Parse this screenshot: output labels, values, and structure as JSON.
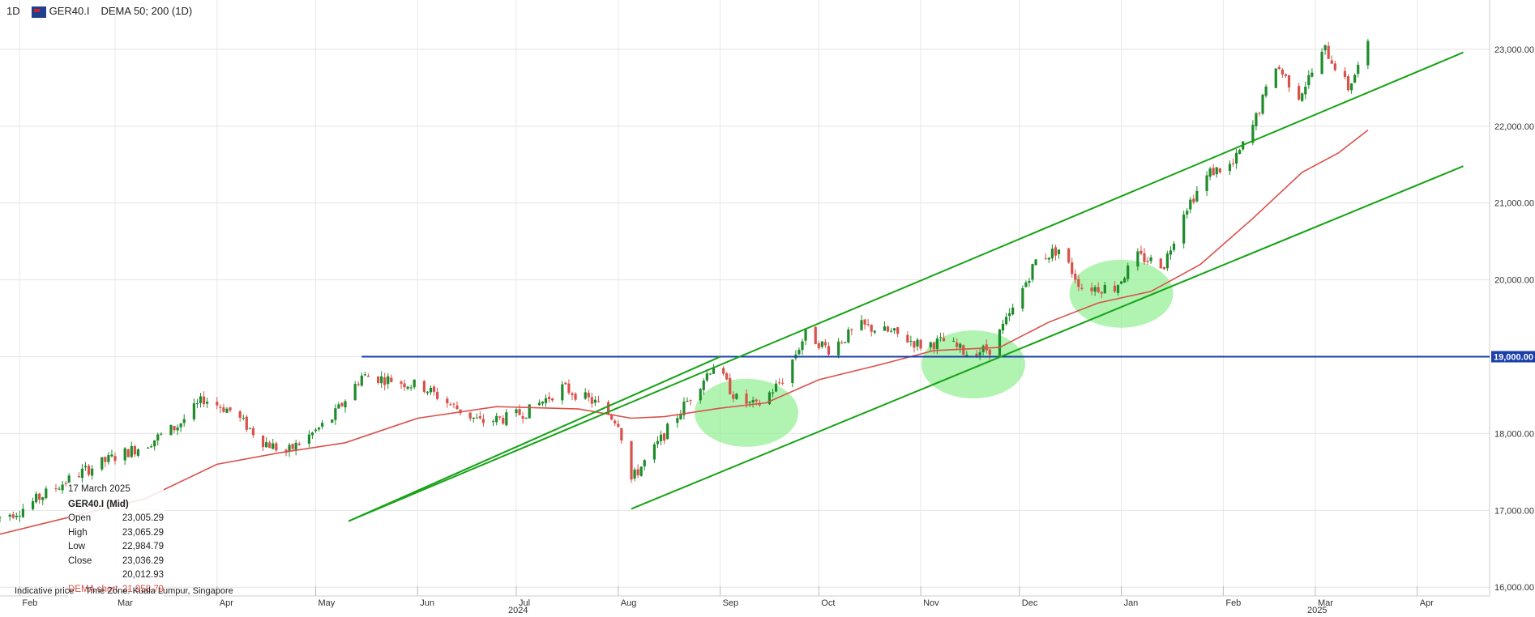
{
  "header": {
    "timeframe": "1D",
    "symbol": "GER40.I",
    "indicator": "DEMA 50; 200 (1D)"
  },
  "info": {
    "date": "17 March 2025",
    "symbol": "GER40.I (Mid)",
    "open_label": "Open",
    "open": "23,005.29",
    "high_label": "High",
    "high": "23,065.29",
    "low_label": "Low",
    "low": "22,984.79",
    "close_label": "Close",
    "close": "23,036.29",
    "dema_long": "20,012.93",
    "dema_short_label": "DEMA short",
    "dema_short": "21,958.79"
  },
  "footer": {
    "indicative": "Indicative price",
    "timezone": "Time Zone: Kuala Lumpur, Singapore"
  },
  "colors": {
    "up": "#1e8c2b",
    "down": "#d9514a",
    "channel": "#16a316",
    "support": "#1a3faa",
    "dema": "#d9514a",
    "highlight": "#90ee90"
  },
  "chart_data": {
    "type": "candlestick",
    "ylim": [
      16000,
      23400
    ],
    "y_ticks": [
      "16,000.00",
      "17,000.00",
      "18,000.00",
      "19,000.00",
      "20,000.00",
      "21,000.00",
      "22,000.00",
      "23,000.00"
    ],
    "y_tick_values": [
      16000,
      17000,
      18000,
      19000,
      20000,
      21000,
      22000,
      23000
    ],
    "x_labels": [
      "Feb",
      "Mar",
      "Apr",
      "May",
      "Jun",
      "Jul",
      "Aug",
      "Sep",
      "Oct",
      "Nov",
      "Dec",
      "Jan",
      "Feb",
      "Mar",
      "Apr"
    ],
    "x_label_dates": [
      "2024-02-01",
      "2024-03-01",
      "2024-04-01",
      "2024-05-01",
      "2024-06-01",
      "2024-07-01",
      "2024-08-01",
      "2024-09-01",
      "2024-10-01",
      "2024-11-01",
      "2024-12-01",
      "2025-01-01",
      "2025-02-01",
      "2025-03-01",
      "2025-04-01"
    ],
    "year_labels": [
      {
        "label": "2024",
        "date": "2024-07-01"
      },
      {
        "label": "2025",
        "date": "2025-03-01"
      }
    ],
    "support_level": {
      "value": 19000,
      "label": "19,000.00",
      "from": "2024-05-15"
    },
    "channel_lines": [
      {
        "name": "upper",
        "from": [
          "2024-05-11",
          16860
        ],
        "to": [
          "2025-04-15",
          22960
        ]
      },
      {
        "name": "lower",
        "from": [
          "2024-08-05",
          17020
        ],
        "to": [
          "2025-04-15",
          21480
        ]
      },
      {
        "name": "rising",
        "from": [
          "2024-05-11",
          16860
        ],
        "to": [
          "2024-09-01",
          19000
        ]
      }
    ],
    "highlight_zones": [
      {
        "date": "2024-09-09",
        "value": 18270
      },
      {
        "date": "2024-11-17",
        "value": 18900
      },
      {
        "date": "2025-01-01",
        "value": 19820
      }
    ],
    "closes": [
      [
        "2024-01-25",
        16900
      ],
      [
        "2024-02-01",
        17000
      ],
      [
        "2024-02-10",
        17250
      ],
      [
        "2024-02-20",
        17500
      ],
      [
        "2024-03-01",
        17700
      ],
      [
        "2024-03-10",
        17850
      ],
      [
        "2024-03-20",
        18100
      ],
      [
        "2024-03-28",
        18450
      ],
      [
        "2024-04-05",
        18300
      ],
      [
        "2024-04-15",
        17900
      ],
      [
        "2024-04-22",
        17750
      ],
      [
        "2024-04-30",
        18000
      ],
      [
        "2024-05-06",
        18200
      ],
      [
        "2024-05-15",
        18750
      ],
      [
        "2024-05-24",
        18700
      ],
      [
        "2024-06-03",
        18600
      ],
      [
        "2024-06-12",
        18350
      ],
      [
        "2024-06-20",
        18150
      ],
      [
        "2024-06-28",
        18200
      ],
      [
        "2024-07-05",
        18300
      ],
      [
        "2024-07-15",
        18600
      ],
      [
        "2024-07-25",
        18400
      ],
      [
        "2024-08-01",
        18150
      ],
      [
        "2024-08-05",
        17400
      ],
      [
        "2024-08-12",
        17800
      ],
      [
        "2024-08-20",
        18300
      ],
      [
        "2024-08-30",
        18900
      ],
      [
        "2024-09-06",
        18450
      ],
      [
        "2024-09-12",
        18350
      ],
      [
        "2024-09-20",
        18700
      ],
      [
        "2024-09-27",
        19300
      ],
      [
        "2024-10-04",
        19100
      ],
      [
        "2024-10-14",
        19400
      ],
      [
        "2024-10-24",
        19300
      ],
      [
        "2024-11-01",
        19150
      ],
      [
        "2024-11-08",
        19200
      ],
      [
        "2024-11-15",
        19050
      ],
      [
        "2024-11-22",
        19100
      ],
      [
        "2024-11-29",
        19600
      ],
      [
        "2024-12-06",
        20250
      ],
      [
        "2024-12-13",
        20400
      ],
      [
        "2024-12-20",
        19900
      ],
      [
        "2024-12-30",
        19900
      ],
      [
        "2025-01-06",
        20300
      ],
      [
        "2025-01-14",
        20200
      ],
      [
        "2025-01-20",
        20900
      ],
      [
        "2025-01-28",
        21400
      ],
      [
        "2025-02-04",
        21500
      ],
      [
        "2025-02-10",
        22000
      ],
      [
        "2025-02-17",
        22800
      ],
      [
        "2025-02-24",
        22400
      ],
      [
        "2025-03-04",
        23000
      ],
      [
        "2025-03-11",
        22500
      ],
      [
        "2025-03-17",
        23036
      ]
    ],
    "dema_short": [
      [
        "2024-01-25",
        16680
      ],
      [
        "2024-02-15",
        16900
      ],
      [
        "2024-03-10",
        17150
      ],
      [
        "2024-04-01",
        17600
      ],
      [
        "2024-04-20",
        17750
      ],
      [
        "2024-05-10",
        17880
      ],
      [
        "2024-06-01",
        18200
      ],
      [
        "2024-06-25",
        18350
      ],
      [
        "2024-07-20",
        18320
      ],
      [
        "2024-08-05",
        18200
      ],
      [
        "2024-08-15",
        18220
      ],
      [
        "2024-09-01",
        18330
      ],
      [
        "2024-09-15",
        18400
      ],
      [
        "2024-10-01",
        18700
      ],
      [
        "2024-10-20",
        18900
      ],
      [
        "2024-11-05",
        19080
      ],
      [
        "2024-11-25",
        19120
      ],
      [
        "2024-12-10",
        19450
      ],
      [
        "2024-12-25",
        19700
      ],
      [
        "2025-01-10",
        19850
      ],
      [
        "2025-01-25",
        20200
      ],
      [
        "2025-02-10",
        20800
      ],
      [
        "2025-02-25",
        21400
      ],
      [
        "2025-03-08",
        21650
      ],
      [
        "2025-03-17",
        21950
      ]
    ]
  }
}
